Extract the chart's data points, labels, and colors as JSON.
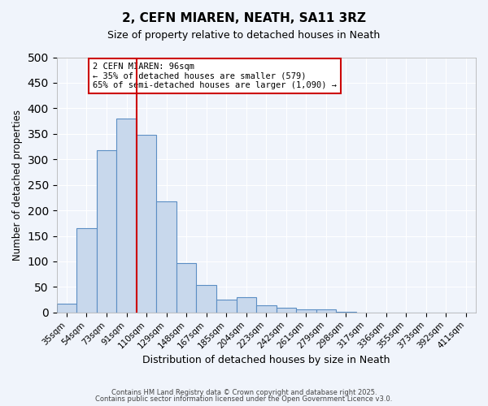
{
  "title": "2, CEFN MIAREN, NEATH, SA11 3RZ",
  "subtitle": "Size of property relative to detached houses in Neath",
  "xlabel": "Distribution of detached houses by size in Neath",
  "ylabel": "Number of detached properties",
  "bar_color": "#c8d8ec",
  "bar_edge_color": "#5b8ec4",
  "background_color": "#f0f4fb",
  "grid_color": "#ffffff",
  "bin_labels": [
    "35sqm",
    "54sqm",
    "73sqm",
    "91sqm",
    "110sqm",
    "129sqm",
    "148sqm",
    "167sqm",
    "185sqm",
    "204sqm",
    "223sqm",
    "242sqm",
    "261sqm",
    "279sqm",
    "298sqm",
    "317sqm",
    "336sqm",
    "355sqm",
    "373sqm",
    "392sqm",
    "411sqm"
  ],
  "bar_values": [
    18,
    165,
    318,
    380,
    348,
    217,
    97,
    54,
    25,
    30,
    14,
    10,
    6,
    6,
    2,
    0,
    0,
    0,
    0,
    0,
    0
  ],
  "vline_position": 3.5,
  "vline_color": "#cc0000",
  "ylim": [
    0,
    500
  ],
  "yticks": [
    0,
    50,
    100,
    150,
    200,
    250,
    300,
    350,
    400,
    450,
    500
  ],
  "annotation_title": "2 CEFN MIAREN: 96sqm",
  "annotation_line1": "← 35% of detached houses are smaller (579)",
  "annotation_line2": "65% of semi-detached houses are larger (1,090) →",
  "footer1": "Contains HM Land Registry data © Crown copyright and database right 2025.",
  "footer2": "Contains public sector information licensed under the Open Government Licence v3.0."
}
